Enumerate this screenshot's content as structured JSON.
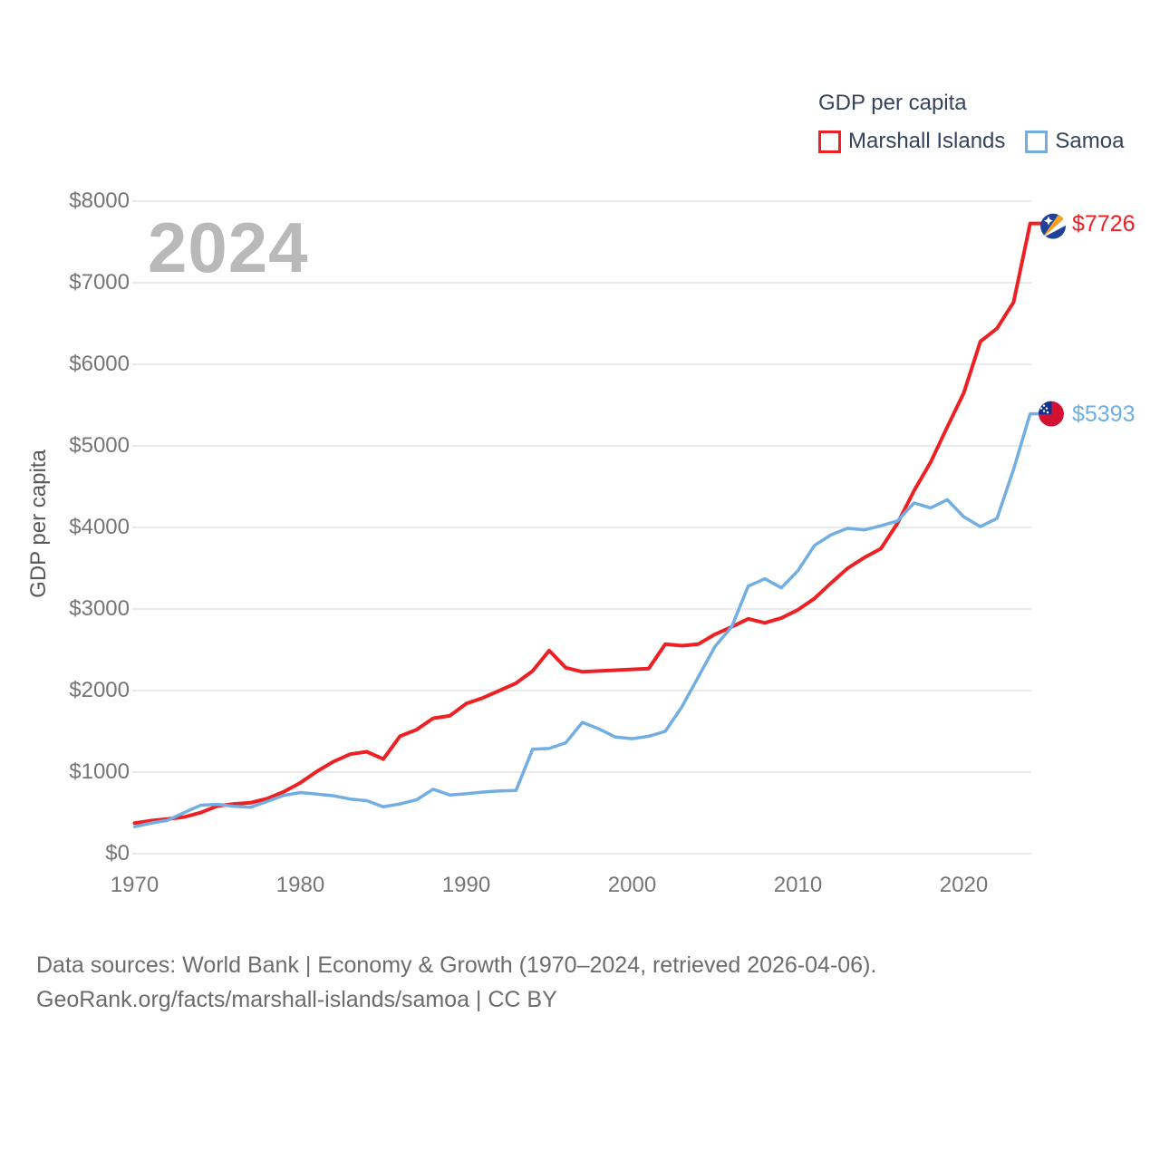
{
  "legend": {
    "title": "GDP per capita",
    "items": [
      {
        "label": "Marshall Islands",
        "color": "#ed2024"
      },
      {
        "label": "Samoa",
        "color": "#72aee2"
      }
    ]
  },
  "watermark": "2024",
  "colors": {
    "marshall_islands_line": "#ed2024",
    "samoa_line": "#72aee2",
    "gridline": "#e4e4e4",
    "axis_text": "#757575",
    "legend_text": "#33435b",
    "watermark_text": "#b9b9b9",
    "footer_text": "#6c6c6c"
  },
  "flags": {
    "marshall_islands": {
      "base": "#20409a",
      "stripe_top": "#f9a11d",
      "stripe_bottom": "#ffffff",
      "star": "#ffffff"
    },
    "samoa": {
      "base": "#d31133",
      "canton": "#103190",
      "stars": "#ffffff"
    }
  },
  "chart_data": {
    "type": "line",
    "title": "GDP per capita",
    "xlabel": "",
    "ylabel": "GDP per capita",
    "xlim": [
      1970,
      2024
    ],
    "ylim": [
      0,
      8000
    ],
    "grid": "horizontal",
    "legend_position": "top-right",
    "xticks": [
      "1970",
      "1980",
      "1990",
      "2000",
      "2010",
      "2020"
    ],
    "xtick_values": [
      1970,
      1980,
      1990,
      2000,
      2010,
      2020
    ],
    "yticks": [
      "$0",
      "$1000",
      "$2000",
      "$3000",
      "$4000",
      "$5000",
      "$6000",
      "$7000",
      "$8000"
    ],
    "ytick_values": [
      0,
      1000,
      2000,
      3000,
      4000,
      5000,
      6000,
      7000,
      8000
    ],
    "x": [
      1970,
      1971,
      1972,
      1973,
      1974,
      1975,
      1976,
      1977,
      1978,
      1979,
      1980,
      1981,
      1982,
      1983,
      1984,
      1985,
      1986,
      1987,
      1988,
      1989,
      1990,
      1991,
      1992,
      1993,
      1994,
      1995,
      1996,
      1997,
      1998,
      1999,
      2000,
      2001,
      2002,
      2003,
      2004,
      2005,
      2006,
      2007,
      2008,
      2009,
      2010,
      2011,
      2012,
      2013,
      2014,
      2015,
      2016,
      2017,
      2018,
      2019,
      2020,
      2021,
      2022,
      2023,
      2024
    ],
    "series": [
      {
        "name": "Marshall Islands",
        "color": "#ed2024",
        "end_label": "$7726",
        "end_value": 7726,
        "flag": "marshall_islands",
        "values": [
          375,
          405,
          425,
          450,
          505,
          585,
          610,
          625,
          675,
          760,
          870,
          1010,
          1130,
          1220,
          1250,
          1160,
          1440,
          1520,
          1660,
          1690,
          1840,
          1910,
          2000,
          2090,
          2240,
          2490,
          2280,
          2230,
          2240,
          2250,
          2260,
          2270,
          2570,
          2550,
          2570,
          2690,
          2780,
          2880,
          2830,
          2890,
          2990,
          3130,
          3320,
          3500,
          3630,
          3740,
          4050,
          4450,
          4800,
          5230,
          5650,
          6280,
          6440,
          6760,
          7726
        ]
      },
      {
        "name": "Samoa",
        "color": "#72aee2",
        "end_label": "$5393",
        "end_value": 5393,
        "flag": "samoa",
        "values": [
          330,
          375,
          410,
          505,
          595,
          605,
          580,
          570,
          640,
          715,
          750,
          730,
          710,
          670,
          650,
          575,
          610,
          660,
          790,
          720,
          735,
          755,
          770,
          775,
          1280,
          1290,
          1360,
          1610,
          1530,
          1430,
          1410,
          1440,
          1500,
          1800,
          2170,
          2540,
          2780,
          3280,
          3370,
          3260,
          3470,
          3780,
          3910,
          3990,
          3970,
          4020,
          4080,
          4300,
          4240,
          4340,
          4130,
          4010,
          4110,
          4710,
          5393
        ]
      }
    ]
  },
  "footer": {
    "line1": "Data sources: World Bank | Economy & Growth (1970–2024, retrieved 2026-04-06).",
    "line2": "GeoRank.org/facts/marshall-islands/samoa | CC BY"
  }
}
